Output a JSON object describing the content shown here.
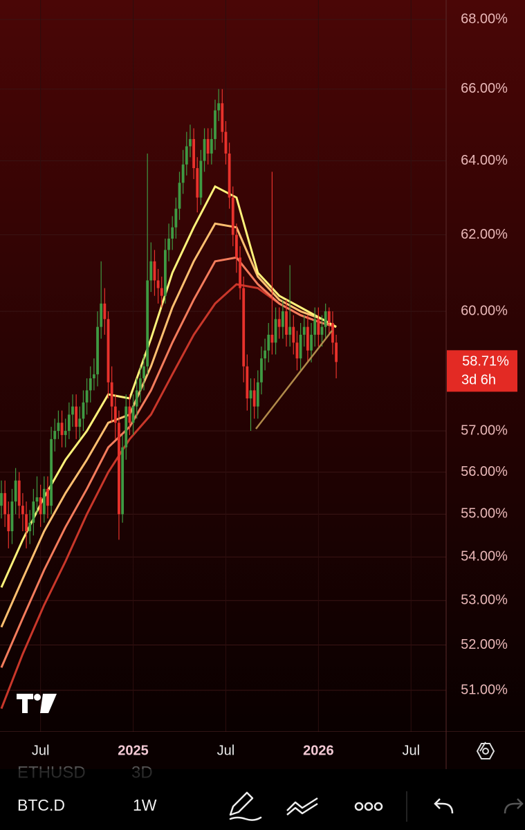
{
  "chart_data": {
    "type": "candlestick",
    "log_scale": true,
    "grid": true,
    "up_color": "#3f9a43",
    "down_color": "#e8322c",
    "open": [
      55.2,
      55.5,
      55.0,
      54.6,
      55.3,
      55.8,
      55.2,
      55.0,
      54.6,
      54.8,
      55.3,
      55.4,
      55.0,
      55.6,
      55.2,
      56.8,
      57.0,
      57.2,
      56.9,
      57.0,
      57.4,
      57.6,
      57.1,
      57.3,
      57.7,
      58.0,
      58.3,
      58.4,
      59.6,
      60.2,
      59.8,
      58.2,
      57.6,
      57.2,
      55.0,
      56.6,
      57.6,
      57.2,
      57.6,
      58.0,
      58.3,
      58.6,
      60.8,
      61.3,
      60.8,
      60.6,
      60.4,
      61.6,
      61.9,
      62.2,
      62.7,
      63.4,
      63.9,
      64.4,
      64.6,
      63.8,
      63.0,
      64.0,
      64.6,
      64.2,
      64.6,
      65.4,
      65.6,
      64.8,
      64.2,
      63.0,
      62.0,
      61.4,
      60.6,
      58.6,
      57.8,
      58.0,
      57.6,
      58.2,
      58.8,
      59.0,
      59.4,
      59.2,
      59.8,
      59.6,
      60.0,
      59.4,
      59.6,
      59.2,
      58.8,
      59.4,
      59.6,
      59.0,
      59.4,
      59.8,
      59.4,
      59.6,
      60.0,
      59.7,
      59.2
    ],
    "high": [
      55.8,
      55.8,
      55.3,
      55.6,
      56.1,
      56.0,
      55.5,
      55.3,
      55.1,
      55.6,
      55.9,
      55.7,
      55.9,
      55.9,
      57.1,
      57.3,
      57.5,
      57.5,
      57.3,
      57.7,
      57.9,
      57.9,
      57.6,
      58.0,
      58.3,
      58.6,
      58.8,
      60.0,
      61.3,
      60.6,
      60.0,
      58.6,
      57.9,
      57.5,
      56.9,
      57.9,
      57.9,
      57.9,
      58.3,
      58.6,
      58.9,
      64.2,
      61.8,
      61.6,
      61.1,
      60.9,
      61.9,
      62.3,
      62.5,
      63.0,
      63.7,
      64.3,
      64.8,
      65.0,
      64.9,
      64.1,
      64.3,
      64.9,
      64.9,
      64.9,
      65.7,
      66.0,
      66.0,
      65.1,
      64.5,
      63.3,
      62.3,
      61.7,
      60.9,
      58.9,
      58.3,
      58.3,
      58.5,
      59.1,
      59.3,
      59.7,
      63.7,
      60.1,
      60.1,
      60.3,
      60.3,
      61.2,
      59.9,
      59.5,
      59.7,
      59.9,
      59.9,
      59.7,
      60.1,
      60.1,
      59.9,
      60.2,
      60.1,
      60.0,
      59.4
    ],
    "low": [
      54.9,
      54.7,
      54.2,
      54.3,
      55.0,
      54.9,
      54.6,
      54.2,
      54.3,
      54.5,
      55.0,
      54.7,
      54.8,
      54.9,
      55.0,
      56.5,
      56.8,
      56.6,
      56.6,
      56.8,
      57.1,
      56.8,
      56.8,
      57.0,
      57.4,
      57.7,
      58.0,
      58.1,
      59.3,
      59.4,
      57.8,
      57.2,
      56.8,
      54.4,
      54.8,
      56.3,
      56.9,
      56.9,
      57.3,
      57.7,
      58.0,
      58.4,
      60.5,
      60.4,
      60.2,
      60.1,
      60.2,
      61.3,
      61.6,
      61.9,
      62.4,
      63.1,
      63.6,
      64.1,
      63.5,
      62.6,
      62.8,
      63.7,
      63.9,
      63.9,
      64.3,
      65.1,
      64.5,
      63.9,
      62.7,
      61.7,
      61.0,
      60.3,
      58.2,
      57.5,
      57.0,
      57.3,
      57.3,
      57.9,
      58.5,
      58.7,
      58.9,
      58.9,
      59.3,
      59.3,
      59.1,
      59.1,
      58.9,
      58.5,
      58.5,
      59.1,
      58.7,
      58.7,
      59.1,
      59.1,
      59.1,
      59.3,
      59.4,
      58.9,
      58.3
    ],
    "close": [
      55.5,
      55.0,
      54.6,
      55.3,
      55.8,
      55.2,
      55.0,
      54.6,
      54.8,
      55.3,
      55.4,
      55.0,
      55.6,
      55.2,
      56.8,
      57.0,
      57.2,
      56.9,
      57.0,
      57.4,
      57.6,
      57.1,
      57.3,
      57.7,
      58.0,
      58.3,
      58.4,
      59.6,
      60.2,
      59.8,
      58.2,
      57.6,
      57.2,
      55.0,
      56.6,
      57.6,
      57.2,
      57.6,
      58.0,
      58.3,
      58.6,
      60.8,
      61.3,
      60.8,
      60.6,
      60.4,
      61.6,
      61.9,
      62.2,
      62.7,
      63.4,
      63.9,
      64.4,
      64.6,
      63.8,
      63.0,
      64.0,
      64.6,
      64.2,
      64.6,
      65.4,
      65.6,
      64.8,
      64.2,
      63.0,
      62.0,
      61.4,
      60.6,
      58.6,
      57.8,
      58.0,
      57.6,
      58.2,
      58.8,
      59.0,
      59.4,
      59.2,
      59.8,
      59.6,
      60.0,
      59.4,
      59.6,
      59.2,
      58.8,
      59.4,
      59.6,
      59.0,
      59.4,
      59.8,
      59.4,
      59.6,
      60.0,
      59.7,
      59.2,
      58.71
    ],
    "ribbon_x": [
      0,
      6,
      12,
      18,
      24,
      30,
      36,
      42,
      48,
      54,
      60,
      66,
      72,
      78,
      84,
      90,
      94
    ],
    "ribbons": [
      {
        "color": "#fff27a",
        "values": [
          53.3,
          54.4,
          55.4,
          56.3,
          57.0,
          57.9,
          57.8,
          59.3,
          61.0,
          62.2,
          63.3,
          63.0,
          61.0,
          60.4,
          60.1,
          59.8,
          59.6
        ]
      },
      {
        "color": "#ffbf70",
        "values": [
          52.4,
          53.5,
          54.6,
          55.5,
          56.3,
          57.2,
          57.4,
          58.6,
          60.1,
          61.3,
          62.3,
          62.2,
          60.9,
          60.3,
          60.0,
          59.8,
          59.6
        ]
      },
      {
        "color": "#f47c5c",
        "values": [
          51.5,
          52.6,
          53.7,
          54.7,
          55.6,
          56.6,
          57.1,
          58.0,
          59.2,
          60.3,
          61.3,
          61.4,
          60.7,
          60.2,
          59.9,
          59.7,
          59.6
        ]
      },
      {
        "color": "#c9372a",
        "values": [
          50.6,
          51.8,
          52.9,
          53.9,
          55.0,
          56.0,
          56.8,
          57.4,
          58.4,
          59.4,
          60.2,
          60.7,
          60.6,
          60.2,
          59.9,
          59.7,
          59.6
        ]
      }
    ],
    "ylim": [
      50.1,
      68.57
    ],
    "yticks": [
      {
        "value": 68,
        "label": "68.00%"
      },
      {
        "value": 66,
        "label": "66.00%"
      },
      {
        "value": 64,
        "label": "64.00%"
      },
      {
        "value": 62,
        "label": "62.00%"
      },
      {
        "value": 60,
        "label": "60.00%"
      },
      {
        "value": 57,
        "label": "57.00%"
      },
      {
        "value": 56,
        "label": "56.00%"
      },
      {
        "value": 55,
        "label": "55.00%"
      },
      {
        "value": 54,
        "label": "54.00%"
      },
      {
        "value": 53,
        "label": "53.00%"
      },
      {
        "value": 52,
        "label": "52.00%"
      },
      {
        "value": 51,
        "label": "51.00%"
      }
    ],
    "xticks": [
      {
        "value": 11,
        "label": "Jul"
      },
      {
        "value": 37,
        "label": "2025"
      },
      {
        "value": 63,
        "label": "Jul"
      },
      {
        "value": 89,
        "label": "2026"
      },
      {
        "value": 115,
        "label": "Jul"
      }
    ],
    "last_price": {
      "value": 58.71,
      "label": "58.71%",
      "countdown": "3d 6h"
    }
  },
  "toolbar": {
    "prev_symbol": "ETHUSD",
    "prev_interval": "3D",
    "symbol": "BTC.D",
    "interval": "1W"
  }
}
